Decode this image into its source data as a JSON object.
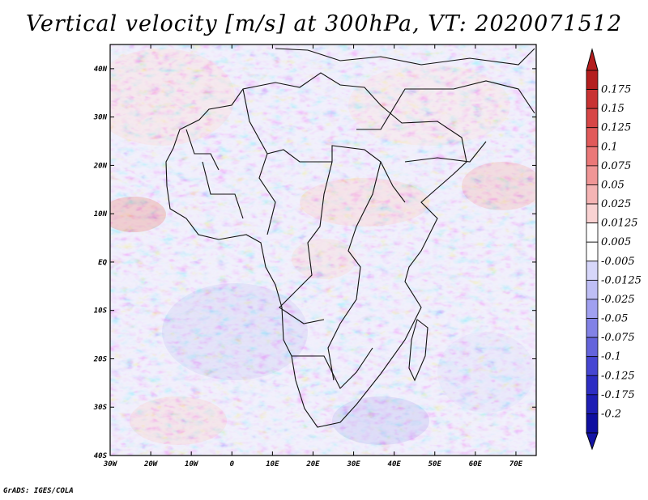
{
  "title": "Vertical velocity [m/s] at 300hPa, VT: 2020071512",
  "footer": "GrADS: IGES/COLA",
  "map": {
    "lon_range": [
      -30,
      75
    ],
    "lat_range": [
      -40,
      45
    ],
    "lat_ticks": [
      {
        "value": 40,
        "label": "40N"
      },
      {
        "value": 30,
        "label": "30N"
      },
      {
        "value": 20,
        "label": "20N"
      },
      {
        "value": 10,
        "label": "10N"
      },
      {
        "value": 0,
        "label": "EQ"
      },
      {
        "value": -10,
        "label": "10S"
      },
      {
        "value": -20,
        "label": "20S"
      },
      {
        "value": -30,
        "label": "30S"
      },
      {
        "value": -40,
        "label": "40S"
      }
    ],
    "lon_ticks": [
      {
        "value": -30,
        "label": "30W"
      },
      {
        "value": -20,
        "label": "20W"
      },
      {
        "value": -10,
        "label": "10W"
      },
      {
        "value": 0,
        "label": "0"
      },
      {
        "value": 10,
        "label": "10E"
      },
      {
        "value": 20,
        "label": "20E"
      },
      {
        "value": 30,
        "label": "30E"
      },
      {
        "value": 40,
        "label": "40E"
      },
      {
        "value": 50,
        "label": "50E"
      },
      {
        "value": 60,
        "label": "60E"
      },
      {
        "value": 70,
        "label": "70E"
      }
    ]
  },
  "colorbar": {
    "labels": [
      "0.175",
      "0.15",
      "0.125",
      "0.1",
      "0.075",
      "0.05",
      "0.025",
      "0.0125",
      "0.005",
      "-0.005",
      "-0.0125",
      "-0.025",
      "-0.05",
      "-0.075",
      "-0.1",
      "-0.125",
      "-0.175",
      "-0.2"
    ],
    "colors": [
      "#b41e1e",
      "#c83232",
      "#d74646",
      "#e15a5a",
      "#eb7878",
      "#f09696",
      "#f5b4b4",
      "#f9d2d2",
      "#ffffff",
      "#ffffff",
      "#d7d7fa",
      "#bebef5",
      "#a0a0f0",
      "#8282e6",
      "#6464dc",
      "#4646d2",
      "#2d2dc3",
      "#1e1eb4",
      "#0f0fa0"
    ],
    "top_color": "#b41e1e",
    "bottom_color": "#1414a5"
  }
}
